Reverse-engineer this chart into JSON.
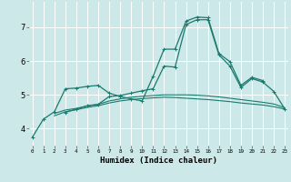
{
  "xlabel": "Humidex (Indice chaleur)",
  "x_values": [
    0,
    1,
    2,
    3,
    4,
    5,
    6,
    7,
    8,
    9,
    10,
    11,
    12,
    13,
    14,
    15,
    16,
    17,
    18,
    19,
    20,
    21,
    22,
    23
  ],
  "line1_x": [
    0,
    1,
    2,
    3,
    4,
    5,
    6,
    7,
    8,
    9,
    10,
    11,
    12,
    13,
    14,
    15,
    16,
    17,
    18,
    19,
    20,
    21
  ],
  "line1_y": [
    3.75,
    4.28,
    4.5,
    5.18,
    5.2,
    5.25,
    5.28,
    5.05,
    4.95,
    4.88,
    4.82,
    5.55,
    6.35,
    6.35,
    7.18,
    7.3,
    7.28,
    6.22,
    5.98,
    5.28,
    5.52,
    5.42
  ],
  "line2_x": [
    3,
    4,
    5,
    6,
    7,
    8,
    9,
    10,
    11,
    12,
    13,
    14,
    15,
    16,
    17,
    18,
    19,
    20,
    21,
    22,
    23
  ],
  "line2_y": [
    4.48,
    4.58,
    4.68,
    4.72,
    4.95,
    4.98,
    5.05,
    5.12,
    5.18,
    5.85,
    5.82,
    7.08,
    7.22,
    7.22,
    6.18,
    5.85,
    5.22,
    5.48,
    5.38,
    5.1,
    4.58
  ],
  "line3_x": [
    2,
    3,
    4,
    5,
    6,
    7,
    8,
    9,
    10,
    11,
    12,
    13,
    14,
    15,
    16,
    17,
    18,
    19,
    20,
    21,
    22,
    23
  ],
  "line3_y": [
    4.45,
    4.55,
    4.6,
    4.67,
    4.72,
    4.82,
    4.88,
    4.93,
    4.96,
    4.98,
    5.0,
    5.0,
    5.0,
    4.99,
    4.97,
    4.94,
    4.9,
    4.86,
    4.82,
    4.78,
    4.73,
    4.62
  ],
  "line4_x": [
    2,
    3,
    4,
    5,
    6,
    7,
    8,
    9,
    10,
    11,
    12,
    13,
    14,
    15,
    16,
    17,
    18,
    19,
    20,
    21,
    22,
    23
  ],
  "line4_y": [
    4.38,
    4.5,
    4.56,
    4.63,
    4.68,
    4.76,
    4.82,
    4.86,
    4.89,
    4.91,
    4.93,
    4.92,
    4.9,
    4.88,
    4.86,
    4.83,
    4.8,
    4.76,
    4.73,
    4.7,
    4.65,
    4.58
  ],
  "bg_color": "#cce8e8",
  "line_color": "#1a7a6e",
  "grid_color": "#ffffff",
  "ylim": [
    3.5,
    7.75
  ],
  "yticks": [
    4,
    5,
    6,
    7
  ],
  "xlim": [
    -0.3,
    23.3
  ]
}
